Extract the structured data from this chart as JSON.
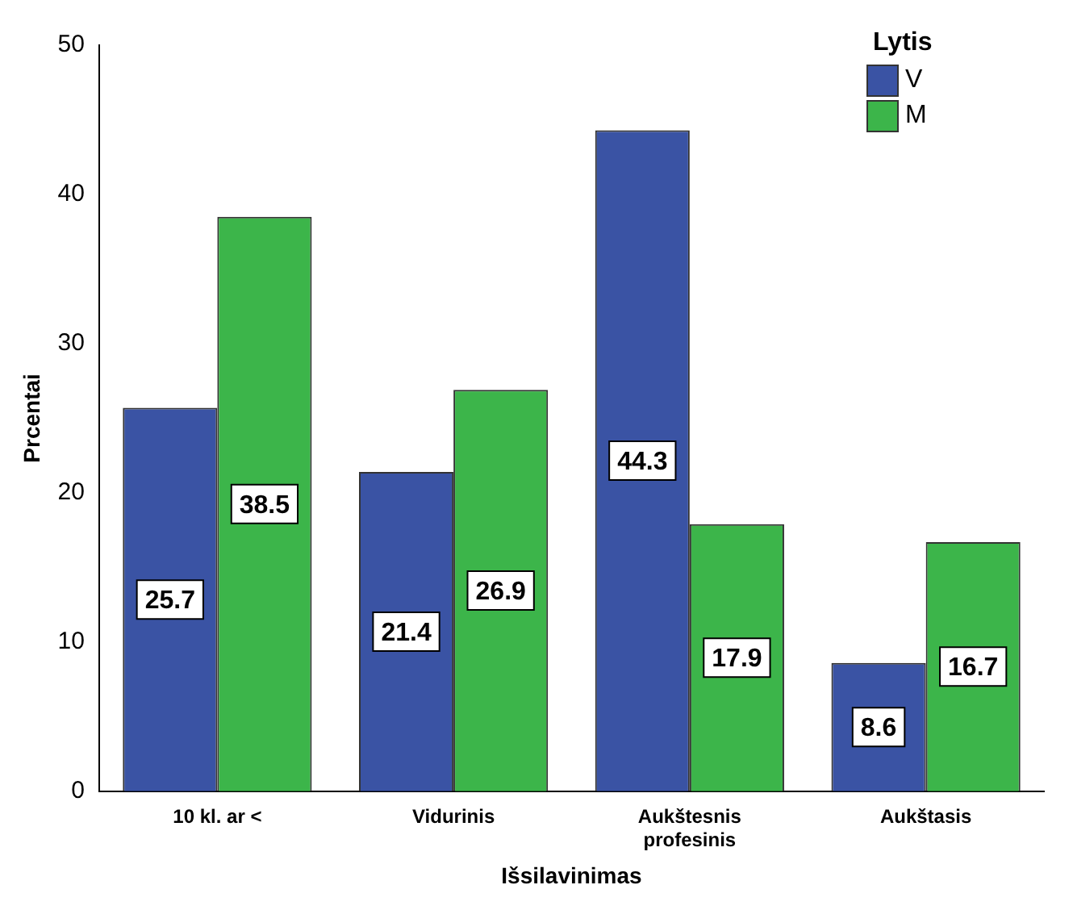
{
  "chart_data": {
    "type": "bar",
    "xlabel": "Išsilavinimas",
    "ylabel": "Prcentai",
    "legend_title": "Lytis",
    "categories": [
      "10 kl. ar <",
      "Vidurinis",
      "Aukštesnis profesinis",
      "Aukštasis"
    ],
    "series": [
      {
        "name": "V",
        "color": "#3a53a4",
        "values": [
          25.7,
          21.4,
          44.3,
          8.6
        ]
      },
      {
        "name": "M",
        "color": "#3cb54a",
        "values": [
          38.5,
          26.9,
          17.9,
          16.7
        ]
      }
    ],
    "ylim": [
      0,
      50
    ],
    "yticks": [
      0,
      10,
      20,
      30,
      40,
      50
    ],
    "grid": false,
    "legend": "top right",
    "data_labels": true
  }
}
